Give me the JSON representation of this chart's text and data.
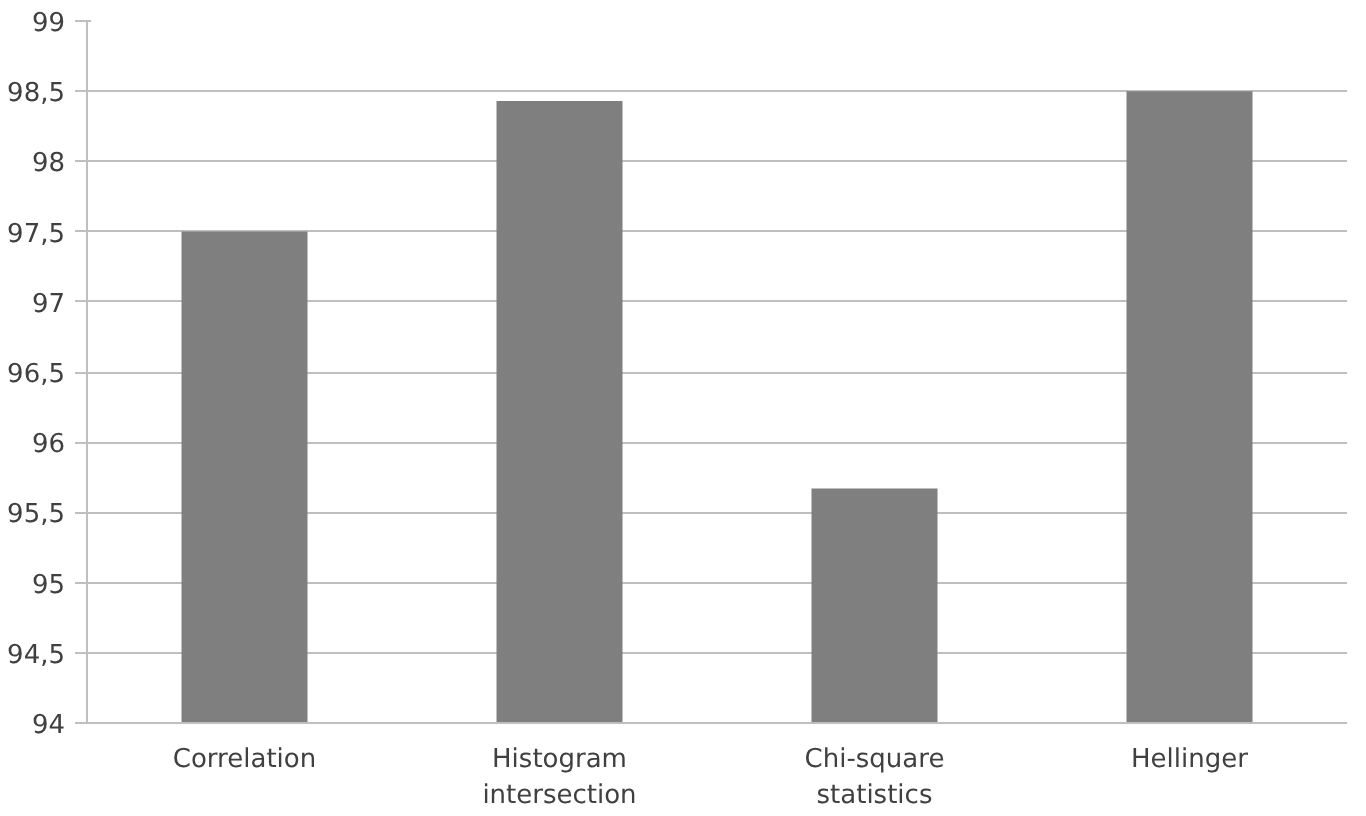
{
  "chart_data": {
    "type": "bar",
    "categories": [
      "Correlation",
      "Histogram intersection",
      "Chi-square statistics",
      "Hellinger"
    ],
    "values": [
      97.5,
      98.43,
      95.67,
      98.5
    ],
    "color": "#7f7f7f",
    "ylim": [
      94,
      99
    ],
    "yticks": [
      94,
      {
        "value": 94.5,
        "label": "94,5"
      },
      95,
      {
        "value": 95.5,
        "label": "95,5"
      },
      96,
      {
        "value": 96.5,
        "label": "96,5"
      },
      97,
      {
        "value": 97.5,
        "label": "97,5"
      },
      98,
      {
        "value": 98.5,
        "label": "98,5"
      },
      99
    ],
    "grid": "y"
  }
}
